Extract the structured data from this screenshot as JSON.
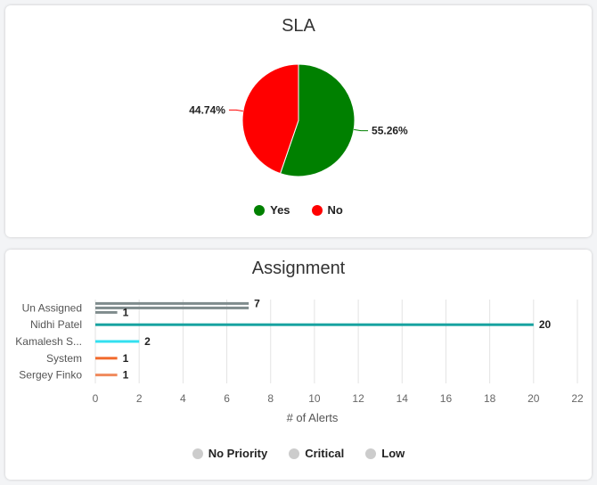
{
  "sla": {
    "title": "SLA",
    "chart_data": {
      "type": "pie",
      "title": "SLA",
      "slices": [
        {
          "label": "Yes",
          "value": 55.26,
          "display": "55.26%",
          "color": "#008000"
        },
        {
          "label": "No",
          "value": 44.74,
          "display": "44.74%",
          "color": "#ff0000"
        }
      ]
    },
    "legend": [
      {
        "label": "Yes",
        "color": "#008000"
      },
      {
        "label": "No",
        "color": "#ff0000"
      }
    ]
  },
  "assignment": {
    "title": "Assignment",
    "chart_data": {
      "type": "bar",
      "orientation": "horizontal",
      "title": "Assignment",
      "xlabel": "# of Alerts",
      "xlim": [
        0,
        22
      ],
      "xticks": [
        "0",
        "2",
        "4",
        "6",
        "8",
        "10",
        "12",
        "14",
        "16",
        "18",
        "20",
        "22"
      ],
      "categories": [
        "Un Assigned",
        "Nidhi Patel",
        "Kamalesh S...",
        "System",
        "Sergey Finko"
      ],
      "bars": [
        {
          "category": "Un Assigned",
          "value": 7,
          "label": "7",
          "color": "#7f8c8d"
        },
        {
          "category": "Un Assigned",
          "value": 7,
          "label": "",
          "color": "#7f8c8d"
        },
        {
          "category": "Un Assigned",
          "value": 1,
          "label": "1",
          "color": "#7f8c8d"
        },
        {
          "category": "Nidhi Patel",
          "value": 20,
          "label": "20",
          "color": "#17a2a0"
        },
        {
          "category": "Kamalesh S...",
          "value": 2,
          "label": "2",
          "color": "#33e0f0"
        },
        {
          "category": "System",
          "value": 1,
          "label": "1",
          "color": "#f26b2d"
        },
        {
          "category": "Sergey Finko",
          "value": 1,
          "label": "1",
          "color": "#f08a5d"
        }
      ]
    },
    "legend": [
      {
        "label": "No Priority",
        "color": "#cccccc"
      },
      {
        "label": "Critical",
        "color": "#cccccc"
      },
      {
        "label": "Low",
        "color": "#cccccc"
      }
    ]
  }
}
